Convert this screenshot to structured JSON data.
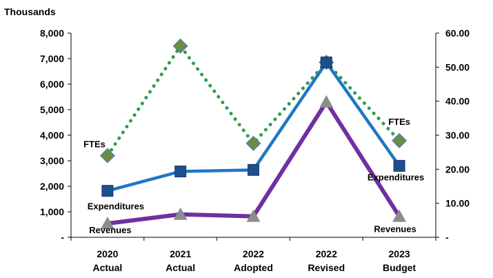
{
  "chart_data": {
    "type": "line",
    "unit_label": "Thousands",
    "categories": [
      [
        "2020",
        "Actual"
      ],
      [
        "2021",
        "Actual"
      ],
      [
        "2022",
        "Adopted"
      ],
      [
        "2022",
        "Revised"
      ],
      [
        "2023",
        "Budget"
      ]
    ],
    "left_axis": {
      "ylim": [
        0,
        8000
      ],
      "ticks": [
        "-",
        "1,000",
        "2,000",
        "3,000",
        "4,000",
        "5,000",
        "6,000",
        "7,000",
        "8,000"
      ]
    },
    "right_axis": {
      "ylim": [
        0,
        60
      ],
      "ticks": [
        "-",
        "10.00",
        "20.00",
        "30.00",
        "40.00",
        "50.00",
        "60.00"
      ]
    },
    "series": [
      {
        "name": "Expenditures",
        "axis": "left",
        "values": [
          1820,
          2580,
          2640,
          6850,
          2800
        ],
        "color": "#1f77c4",
        "marker": "square",
        "marker_color": "#1f4e8c"
      },
      {
        "name": "Revenues",
        "axis": "left",
        "values": [
          540,
          900,
          820,
          5300,
          820
        ],
        "color": "#7030a0",
        "marker": "triangle",
        "marker_color": "#8c8c8c"
      },
      {
        "name": "FTEs",
        "axis": "right",
        "values": [
          24.0,
          56.2,
          27.6,
          51.4,
          28.4
        ],
        "color": "#2e9e48",
        "marker": "diamond",
        "marker_color": "#6e8c3a",
        "line_style": "dotted"
      }
    ],
    "annotations": [
      {
        "text": "FTEs",
        "series": "FTEs",
        "point": 0
      },
      {
        "text": "Expenditures",
        "series": "Expenditures",
        "point": 0
      },
      {
        "text": "Revenues",
        "series": "Revenues",
        "point": 0
      },
      {
        "text": "FTEs",
        "series": "FTEs",
        "point": 4
      },
      {
        "text": "Expenditures",
        "series": "Expenditures",
        "point": 4
      },
      {
        "text": "Revenues",
        "series": "Revenues",
        "point": 4
      }
    ],
    "grid": false,
    "legend": "none"
  }
}
